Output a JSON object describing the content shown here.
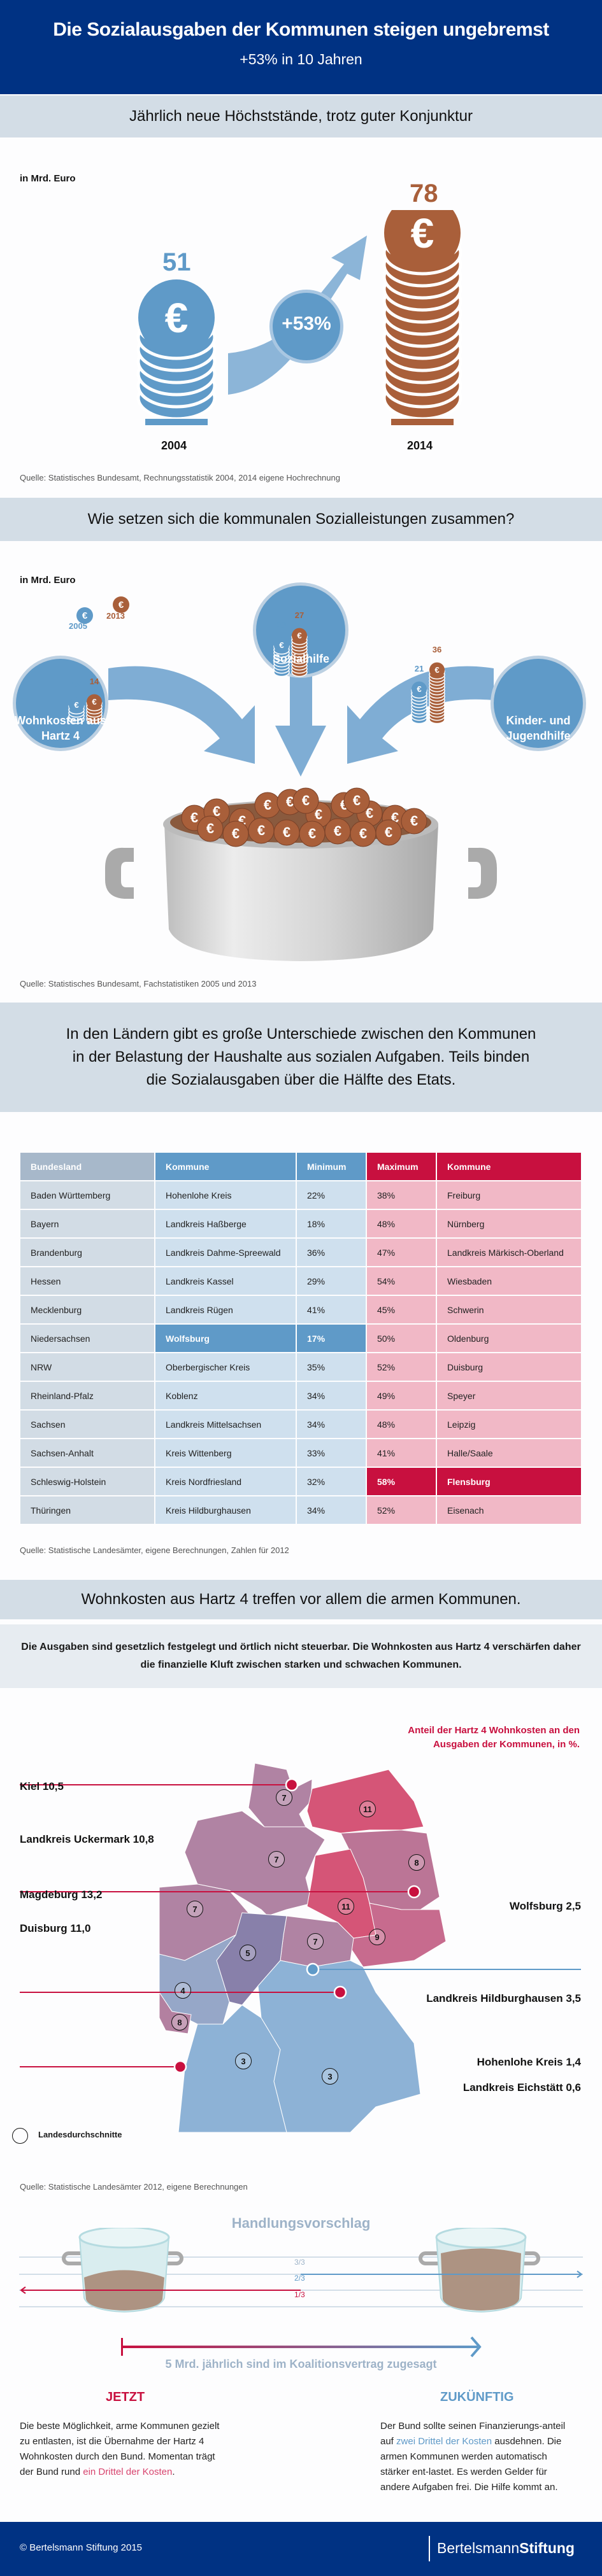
{
  "header": {
    "title": "Die Sozialausgaben der Kommunen steigen ungebremst",
    "subtitle": "+53% in 10 Jahren"
  },
  "section1": {
    "heading": "Jährlich neue Höchststände, trotz guter Konjunktur",
    "unit": "in Mrd. Euro",
    "growth_label": "+53%",
    "source": "Quelle: Statistisches Bundesamt, Rechnungsstatistik 2004, 2014 eigene Hochrechnung",
    "colors": {
      "year_a": "#5f9ac8",
      "year_b": "#a95f3a"
    }
  },
  "section2": {
    "heading": "Wie setzen sich die kommunalen Sozialleistungen zusammen?",
    "unit": "in Mrd. Euro",
    "legend": [
      {
        "year": "2005",
        "color": "#5f9ac8"
      },
      {
        "year": "2013",
        "color": "#a95f3a"
      }
    ],
    "source": "Quelle: Statistisches Bundesamt, Fachstatistiken 2005 und 2013"
  },
  "section3": {
    "heading": "In den Ländern gibt es große Unterschiede zwischen den Kommunen in der Belastung der Haushalte aus sozialen Aufgaben. Teils binden die Sozialausgaben über die Hälfte des Etats.",
    "headers": [
      "Bundesland",
      "Kommune",
      "Minimum",
      "Maximum",
      "Kommune"
    ],
    "rows": [
      [
        "Baden Württemberg",
        "Hohenlohe Kreis",
        "22%",
        "38%",
        "Freiburg"
      ],
      [
        "Bayern",
        "Landkreis Haßberge",
        "18%",
        "48%",
        "Nürnberg"
      ],
      [
        "Brandenburg",
        "Landkreis Dahme-Spreewald",
        "36%",
        "47%",
        "Landkreis Märkisch-Oberland"
      ],
      [
        "Hessen",
        "Landkreis Kassel",
        "29%",
        "54%",
        "Wiesbaden"
      ],
      [
        "Mecklenburg",
        "Landkreis Rügen",
        "41%",
        "45%",
        "Schwerin"
      ],
      [
        "Niedersachsen",
        "Wolfsburg",
        "17%",
        "50%",
        "Oldenburg"
      ],
      [
        "NRW",
        "Oberbergischer Kreis",
        "35%",
        "52%",
        "Duisburg"
      ],
      [
        "Rheinland-Pfalz",
        "Koblenz",
        "34%",
        "49%",
        "Speyer"
      ],
      [
        "Sachsen",
        "Landkreis Mittelsachsen",
        "34%",
        "48%",
        "Leipzig"
      ],
      [
        "Sachsen-Anhalt",
        "Kreis Wittenberg",
        "33%",
        "41%",
        "Halle/Saale"
      ],
      [
        "Schleswig-Holstein",
        "Kreis Nordfriesland",
        "32%",
        "58%",
        "Flensburg"
      ],
      [
        "Thüringen",
        "Kreis Hildburghausen",
        "34%",
        "52%",
        "Eisenach"
      ]
    ],
    "highlight_min_row": 5,
    "highlight_max_row": 10,
    "source": "Quelle: Statistische Landesämter, eigene Berechnungen, Zahlen für 2012"
  },
  "section4": {
    "heading": "Wohnkosten aus Hartz 4 treffen vor allem die armen Kommunen.",
    "intro": "Die Ausgaben sind gesetzlich festgelegt und örtlich nicht steuerbar. Die Wohnkosten aus Hartz 4 verschärfen daher die finanzielle Kluft zwischen starken und schwachen Kommunen.",
    "map_legend_title": "Anteil der Hartz 4 Wohnkosten an den Ausgaben der Kommunen, in %.",
    "map_legend_circle": "Landesdurchschnitte",
    "state_averages": [
      {
        "state": "Schleswig-Holstein",
        "value": "7"
      },
      {
        "state": "Mecklenburg-Vorpommern",
        "value": "11"
      },
      {
        "state": "Niedersachsen",
        "value": "7"
      },
      {
        "state": "Brandenburg",
        "value": "8"
      },
      {
        "state": "Sachsen-Anhalt",
        "value": "11"
      },
      {
        "state": "NRW",
        "value": "7"
      },
      {
        "state": "Sachsen",
        "value": "9"
      },
      {
        "state": "Thüringen",
        "value": "7"
      },
      {
        "state": "Hessen",
        "value": "5"
      },
      {
        "state": "Rheinland-Pfalz",
        "value": "4"
      },
      {
        "state": "Saarland",
        "value": "8"
      },
      {
        "state": "Baden-Württemberg",
        "value": "3"
      },
      {
        "state": "Bayern",
        "value": "3"
      }
    ],
    "cities_high": [
      {
        "label": "Kiel 10,5"
      },
      {
        "label": "Landkreis Uckermark 10,8"
      },
      {
        "label": "Magdeburg 13,2"
      },
      {
        "label": "Duisburg 11,0"
      }
    ],
    "cities_low": [
      {
        "label": "Wolfsburg 2,5"
      },
      {
        "label": "Landkreis Hildburghausen 3,5"
      },
      {
        "label": "Hohenlohe Kreis 1,4"
      },
      {
        "label": "Landkreis Eichstätt 0,6"
      }
    ],
    "source": "Quelle: Statistische Landesämter 2012, eigene Berechnungen"
  },
  "section5": {
    "title": "Handlungsvorschlag",
    "levels": [
      "3/3",
      "2/3",
      "1/3"
    ],
    "arrow_caption": "5 Mrd. jährlich sind im Koalitionsvertrag zugesagt",
    "now": {
      "heading": "JETZT",
      "text_a": "Die beste Möglichkeit, arme Kommunen gezielt zu entlasten, ist die Übernahme der Hartz 4 Wohnkosten durch den Bund. Momentan trägt der Bund rund ",
      "text_highlight": "ein Drittel der Kosten",
      "text_b": "."
    },
    "future": {
      "heading": "ZUKÜNFTIG",
      "text_a": "Der Bund sollte seinen Finanzierungs-anteil auf ",
      "text_highlight": "zwei Drittel der Kosten",
      "text_b": " ausdehnen. Die armen Kommunen werden automatisch stärker ent-lastet. Es werden Gelder für andere Aufgaben frei.  Die Hilfe kommt an."
    }
  },
  "footer": {
    "copyright": "© Bertelsmann Stiftung 2015",
    "logo_a": "Bertelsmann",
    "logo_b": "Stiftung"
  },
  "chart_data": [
    {
      "type": "bar",
      "title": "Jährlich neue Höchststände, trotz guter Konjunktur",
      "ylabel": "in Mrd. Euro",
      "categories": [
        "2004",
        "2014"
      ],
      "values": [
        51,
        78
      ],
      "annotation": "+53%"
    },
    {
      "type": "bar",
      "title": "Wie setzen sich die kommunalen Sozialleistungen zusammen?",
      "ylabel": "in Mrd. Euro",
      "categories": [
        "Wohnkosten aus Hartz 4",
        "Sozialhilfe",
        "Kinder- und Jugendhilfe"
      ],
      "series": [
        {
          "name": "2005",
          "values": [
            12,
            20,
            21
          ]
        },
        {
          "name": "2013",
          "values": [
            14,
            27,
            36
          ]
        }
      ]
    }
  ]
}
